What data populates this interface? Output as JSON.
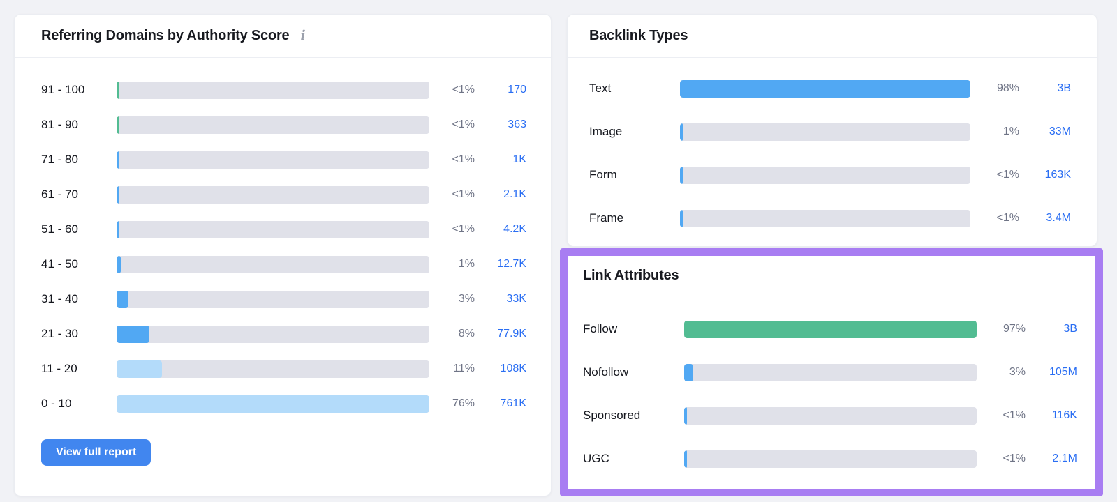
{
  "colors": {
    "green": "#52bc92",
    "blue": "#51a8f3",
    "lightblue": "#b3dbfa",
    "track": "#e0e1e9",
    "link_blue": "#2a6ef3",
    "button_blue": "#4186ef",
    "highlight_purple": "#a87df2"
  },
  "icons": {
    "info": "i"
  },
  "authority_card": {
    "title": "Referring Domains by Authority Score",
    "button_label": "View full report",
    "rows": [
      {
        "label": "91 - 100",
        "pct": "<1%",
        "value": "170",
        "fill": 0.7,
        "color": "green"
      },
      {
        "label": "81 - 90",
        "pct": "<1%",
        "value": "363",
        "fill": 0.7,
        "color": "green"
      },
      {
        "label": "71 - 80",
        "pct": "<1%",
        "value": "1K",
        "fill": 0.8,
        "color": "blue"
      },
      {
        "label": "61 - 70",
        "pct": "<1%",
        "value": "2.1K",
        "fill": 0.8,
        "color": "blue"
      },
      {
        "label": "51 - 60",
        "pct": "<1%",
        "value": "4.2K",
        "fill": 0.9,
        "color": "blue"
      },
      {
        "label": "41 - 50",
        "pct": "1%",
        "value": "12.7K",
        "fill": 1.3,
        "color": "blue"
      },
      {
        "label": "31 - 40",
        "pct": "3%",
        "value": "33K",
        "fill": 3.9,
        "color": "blue"
      },
      {
        "label": "21 - 30",
        "pct": "8%",
        "value": "77.9K",
        "fill": 10.5,
        "color": "blue"
      },
      {
        "label": "11 - 20",
        "pct": "11%",
        "value": "108K",
        "fill": 14.5,
        "color": "lightblue"
      },
      {
        "label": "0 - 10",
        "pct": "76%",
        "value": "761K",
        "fill": 100,
        "color": "lightblue"
      }
    ]
  },
  "backlink_types_card": {
    "title": "Backlink Types",
    "rows": [
      {
        "label": "Text",
        "pct": "98%",
        "value": "3B",
        "fill": 100,
        "color": "blue"
      },
      {
        "label": "Image",
        "pct": "1%",
        "value": "33M",
        "fill": 1.0,
        "color": "blue"
      },
      {
        "label": "Form",
        "pct": "<1%",
        "value": "163K",
        "fill": 0.6,
        "color": "blue"
      },
      {
        "label": "Frame",
        "pct": "<1%",
        "value": "3.4M",
        "fill": 0.6,
        "color": "blue"
      }
    ]
  },
  "link_attributes_card": {
    "title": "Link Attributes",
    "rows": [
      {
        "label": "Follow",
        "pct": "97%",
        "value": "3B",
        "fill": 100,
        "color": "green"
      },
      {
        "label": "Nofollow",
        "pct": "3%",
        "value": "105M",
        "fill": 3.1,
        "color": "blue"
      },
      {
        "label": "Sponsored",
        "pct": "<1%",
        "value": "116K",
        "fill": 0.6,
        "color": "blue"
      },
      {
        "label": "UGC",
        "pct": "<1%",
        "value": "2.1M",
        "fill": 0.6,
        "color": "blue"
      }
    ]
  },
  "chart_data": [
    {
      "type": "bar",
      "orientation": "horizontal",
      "title": "Referring Domains by Authority Score",
      "categories": [
        "91 - 100",
        "81 - 90",
        "71 - 80",
        "61 - 70",
        "51 - 60",
        "41 - 50",
        "31 - 40",
        "21 - 30",
        "11 - 20",
        "0 - 10"
      ],
      "percent_labels": [
        "<1%",
        "<1%",
        "<1%",
        "<1%",
        "<1%",
        "1%",
        "3%",
        "8%",
        "11%",
        "76%"
      ],
      "value_labels": [
        "170",
        "363",
        "1K",
        "2.1K",
        "4.2K",
        "12.7K",
        "33K",
        "77.9K",
        "108K",
        "761K"
      ],
      "bar_scaling": "relative to max percent (76% = full bar)",
      "legend_position": "none",
      "grid": false
    },
    {
      "type": "bar",
      "orientation": "horizontal",
      "title": "Backlink Types",
      "categories": [
        "Text",
        "Image",
        "Form",
        "Frame"
      ],
      "percent_labels": [
        "98%",
        "1%",
        "<1%",
        "<1%"
      ],
      "value_labels": [
        "3B",
        "33M",
        "163K",
        "3.4M"
      ],
      "bar_scaling": "relative to max percent (98% = full bar)",
      "legend_position": "none",
      "grid": false
    },
    {
      "type": "bar",
      "orientation": "horizontal",
      "title": "Link Attributes",
      "categories": [
        "Follow",
        "Nofollow",
        "Sponsored",
        "UGC"
      ],
      "percent_labels": [
        "97%",
        "3%",
        "<1%",
        "<1%"
      ],
      "value_labels": [
        "3B",
        "105M",
        "116K",
        "2.1M"
      ],
      "bar_scaling": "relative to max percent (97% = full bar)",
      "legend_position": "none",
      "grid": false
    }
  ]
}
